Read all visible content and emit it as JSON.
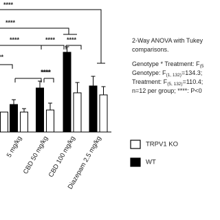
{
  "chart_data": {
    "type": "bar",
    "categories": [
      null,
      "5 mg/kg",
      "CBD 50 mg/kg",
      "CBD 100 mg/kg",
      "Diazepam 2.5 mg/kg"
    ],
    "series": [
      {
        "name": "TRPV1 KO",
        "color": "#ffffff",
        "values": [
          29,
          29,
          32,
          57,
          54
        ],
        "errors": [
          null,
          5,
          10,
          15,
          12
        ]
      },
      {
        "name": "WT",
        "color": "#000000",
        "values": [
          null,
          40,
          64,
          116,
          67
        ],
        "errors": [
          null,
          7,
          10,
          8,
          14
        ]
      }
    ],
    "ylim": [
      0,
      150
    ],
    "annotations": [
      "****",
      "****",
      "****",
      "**",
      "****",
      "****",
      "****",
      "****"
    ],
    "stats_text": [
      [
        {
          "text": "2-Way ANOVA with Tukey"
        }
      ],
      [
        {
          "text": "comparisons."
        }
      ],
      [
        {
          "text": "Genotype * Treatment: F"
        },
        {
          "sub": "(5"
        }
      ],
      [
        {
          "text": "Genotype: F"
        },
        {
          "sub": "(1, 132)"
        },
        {
          "text": "=134.3;"
        }
      ],
      [
        {
          "text": "Treatment: F"
        },
        {
          "sub": "(5, 132)"
        },
        {
          "text": "=110.4;"
        }
      ],
      [
        {
          "text": "n=12 per group; ****: P<0"
        }
      ]
    ]
  }
}
